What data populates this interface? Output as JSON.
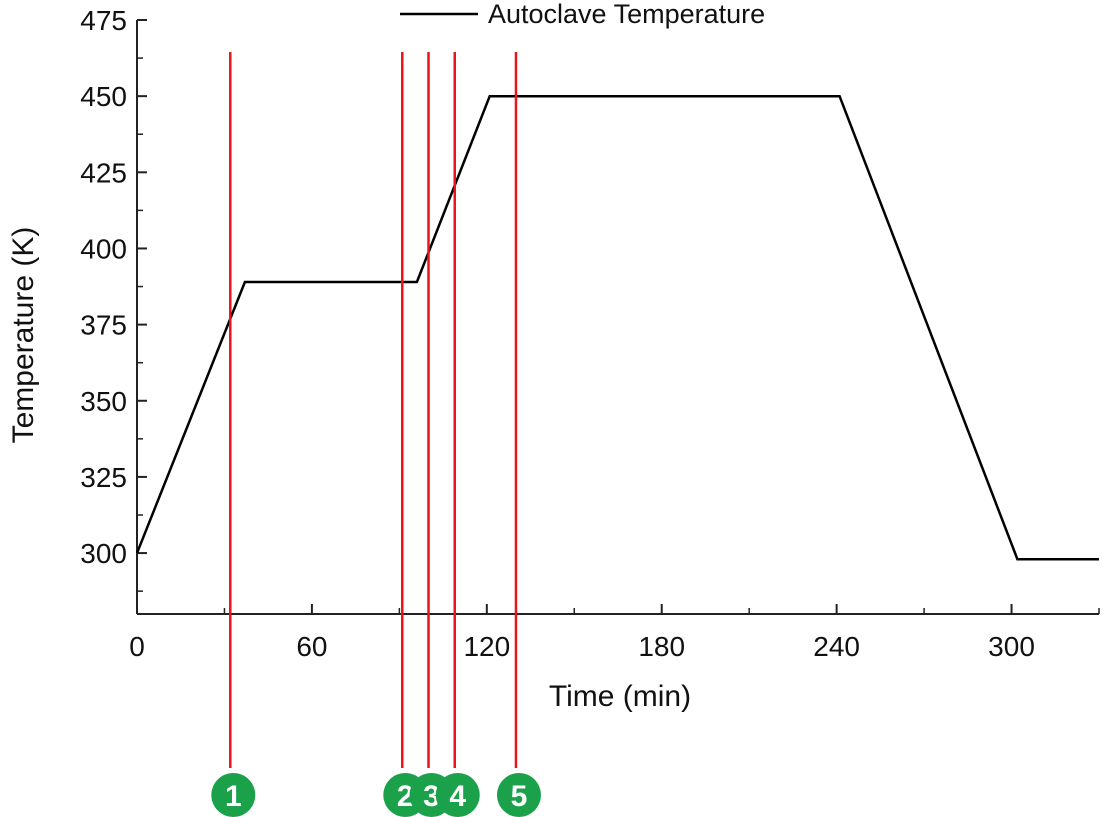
{
  "chart_data": {
    "type": "line",
    "xlabel": "Time (min)",
    "ylabel": "Temperature (K)",
    "xlim": [
      0,
      330
    ],
    "ylim": [
      280,
      475
    ],
    "x_ticks": [
      0,
      60,
      120,
      180,
      240,
      300
    ],
    "x_minor_ticks": [
      30,
      90,
      150,
      210,
      270,
      330
    ],
    "y_ticks": [
      300,
      325,
      350,
      375,
      400,
      425,
      450,
      475
    ],
    "grid": false,
    "legend_position": "top",
    "series": [
      {
        "name": "Autoclave Temperature",
        "color": "#000000",
        "x": [
          0,
          37,
          96,
          121,
          241,
          302,
          330
        ],
        "y": [
          300,
          389,
          389,
          450,
          450,
          298,
          298
        ]
      }
    ],
    "markers": {
      "line_color": "#e8151b",
      "badge_color": "#1aa14a",
      "items": [
        {
          "label": "1",
          "x": 32
        },
        {
          "label": "2",
          "x": 91
        },
        {
          "label": "3",
          "x": 100
        },
        {
          "label": "4",
          "x": 109
        },
        {
          "label": "5",
          "x": 130
        }
      ]
    }
  }
}
